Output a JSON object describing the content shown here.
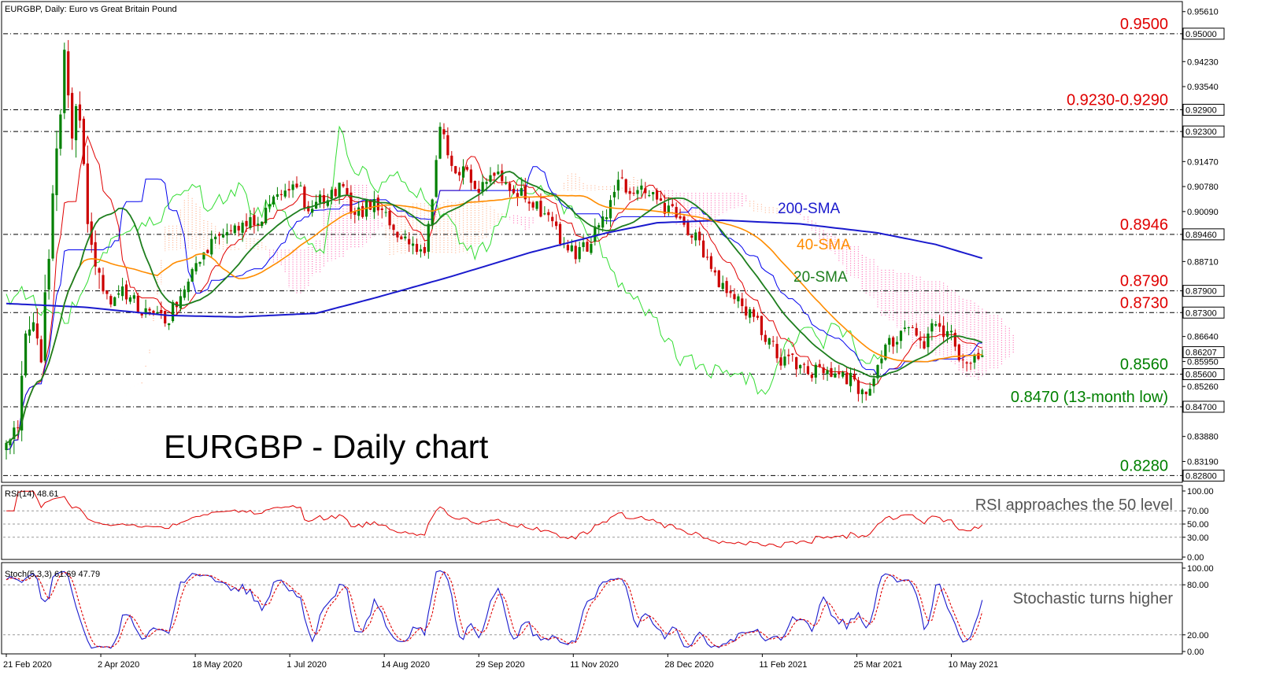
{
  "header": {
    "symbol_title": "EURGBP, Daily:  Euro vs Great Britain Pound",
    "rsi_title": "RSI(14) 48.61",
    "stoch_title": "Stoch(5,3,3) 61.69 47.79"
  },
  "chart_title": "EURGBP - Daily chart",
  "colors": {
    "candle_up": "#008000",
    "candle_down": "#cc0000",
    "sma20": "#1e7e1e",
    "sma40": "#ff8c00",
    "sma200": "#1a1acd",
    "tenkan": "#e00000",
    "kijun": "#0000ee",
    "chikou": "#33dd33",
    "cloud_bear": "#ff69b4",
    "cloud_bull": "#ffb08a",
    "level_red": "#e00000",
    "level_green": "#008000",
    "rsi_line": "#e00000",
    "stoch_main": "#1a1acd",
    "stoch_signal": "#e00000"
  },
  "annotations": {
    "sma200": "200-SMA",
    "sma40": "40-SMA",
    "sma20": "20-SMA",
    "rsi_note": "RSI approaches the 50 level",
    "stoch_note": "Stochastic turns higher"
  },
  "chart_data": [
    {
      "type": "candlestick",
      "title": "EURGBP - Daily chart",
      "x_ticks": [
        "21 Feb 2020",
        "2 Apr 2020",
        "18 May 2020",
        "1 Jul 2020",
        "14 Aug 2020",
        "29 Sep 2020",
        "11 Nov 2020",
        "28 Dec 2020",
        "11 Feb 2021",
        "25 Mar 2021",
        "10 May 2021"
      ],
      "y_ticks": [
        "0.95610",
        "0.94230",
        "0.93540",
        "0.91470",
        "0.90780",
        "0.90090",
        "0.88710",
        "0.86640",
        "0.85950",
        "0.85260",
        "0.83880",
        "0.83190"
      ],
      "ylim": [
        0.827,
        0.958
      ],
      "price_boxes": [
        "0.95000",
        "0.92900",
        "0.92300",
        "0.89460",
        "0.87900",
        "0.87300",
        "0.86207",
        "0.85600",
        "0.84700",
        "0.82800"
      ],
      "key_levels": [
        {
          "label": "0.9500",
          "value": 0.95,
          "color": "red"
        },
        {
          "label": "0.9230-0.9290",
          "value": 0.929,
          "color": "red"
        },
        {
          "label": "",
          "value": 0.923,
          "color": "red"
        },
        {
          "label": "0.8946",
          "value": 0.8946,
          "color": "red"
        },
        {
          "label": "0.8790",
          "value": 0.879,
          "color": "red"
        },
        {
          "label": "0.8730",
          "value": 0.873,
          "color": "red"
        },
        {
          "label": "0.8560",
          "value": 0.856,
          "color": "green"
        },
        {
          "label": "0.8470 (13-month low)",
          "value": 0.847,
          "color": "green"
        },
        {
          "label": "0.8280",
          "value": 0.828,
          "color": "green"
        }
      ],
      "close_series_knots": [
        [
          0,
          0.84
        ],
        [
          3,
          0.845
        ],
        [
          6,
          0.872
        ],
        [
          9,
          0.862
        ],
        [
          12,
          0.905
        ],
        [
          14,
          0.93
        ],
        [
          15,
          0.944
        ],
        [
          17,
          0.921
        ],
        [
          19,
          0.93
        ],
        [
          21,
          0.901
        ],
        [
          23,
          0.888
        ],
        [
          26,
          0.876
        ],
        [
          30,
          0.879
        ],
        [
          34,
          0.875
        ],
        [
          38,
          0.872
        ],
        [
          42,
          0.872
        ],
        [
          46,
          0.88
        ],
        [
          50,
          0.888
        ],
        [
          55,
          0.895
        ],
        [
          60,
          0.896
        ],
        [
          65,
          0.898
        ],
        [
          70,
          0.905
        ],
        [
          74,
          0.91
        ],
        [
          78,
          0.902
        ],
        [
          82,
          0.904
        ],
        [
          86,
          0.908
        ],
        [
          90,
          0.9
        ],
        [
          95,
          0.904
        ],
        [
          100,
          0.896
        ],
        [
          105,
          0.893
        ],
        [
          108,
          0.89
        ],
        [
          110,
          0.906
        ],
        [
          112,
          0.923
        ],
        [
          115,
          0.914
        ],
        [
          118,
          0.912
        ],
        [
          122,
          0.908
        ],
        [
          127,
          0.91
        ],
        [
          132,
          0.906
        ],
        [
          137,
          0.902
        ],
        [
          142,
          0.895
        ],
        [
          147,
          0.888
        ],
        [
          150,
          0.892
        ],
        [
          154,
          0.898
        ],
        [
          158,
          0.91
        ],
        [
          161,
          0.905
        ],
        [
          165,
          0.908
        ],
        [
          170,
          0.902
        ],
        [
          175,
          0.898
        ],
        [
          179,
          0.892
        ],
        [
          183,
          0.883
        ],
        [
          188,
          0.877
        ],
        [
          192,
          0.873
        ],
        [
          196,
          0.866
        ],
        [
          200,
          0.86
        ],
        [
          205,
          0.859
        ],
        [
          210,
          0.856
        ],
        [
          214,
          0.856
        ],
        [
          218,
          0.855
        ],
        [
          221,
          0.85
        ],
        [
          223,
          0.854
        ],
        [
          226,
          0.862
        ],
        [
          230,
          0.867
        ],
        [
          234,
          0.87
        ],
        [
          237,
          0.864
        ],
        [
          240,
          0.87
        ],
        [
          244,
          0.866
        ],
        [
          246,
          0.859
        ],
        [
          249,
          0.86
        ],
        [
          252,
          0.862
        ]
      ],
      "series_names": [
        "200-SMA",
        "40-SMA",
        "20-SMA"
      ]
    },
    {
      "type": "line",
      "title": "RSI(14) 48.61",
      "y_ticks": [
        "100.00",
        "70.00",
        "50.00",
        "30.00",
        "0.00"
      ],
      "ylim": [
        0,
        100
      ],
      "levels": [
        70,
        50,
        30
      ],
      "last_value": 48.61
    },
    {
      "type": "line",
      "title": "Stoch(5,3,3) 61.69 47.79",
      "y_ticks": [
        "100.00",
        "80.00",
        "20.00",
        "0.00"
      ],
      "ylim": [
        0,
        100
      ],
      "levels": [
        80,
        20
      ],
      "last_values": [
        61.69,
        47.79
      ]
    }
  ]
}
